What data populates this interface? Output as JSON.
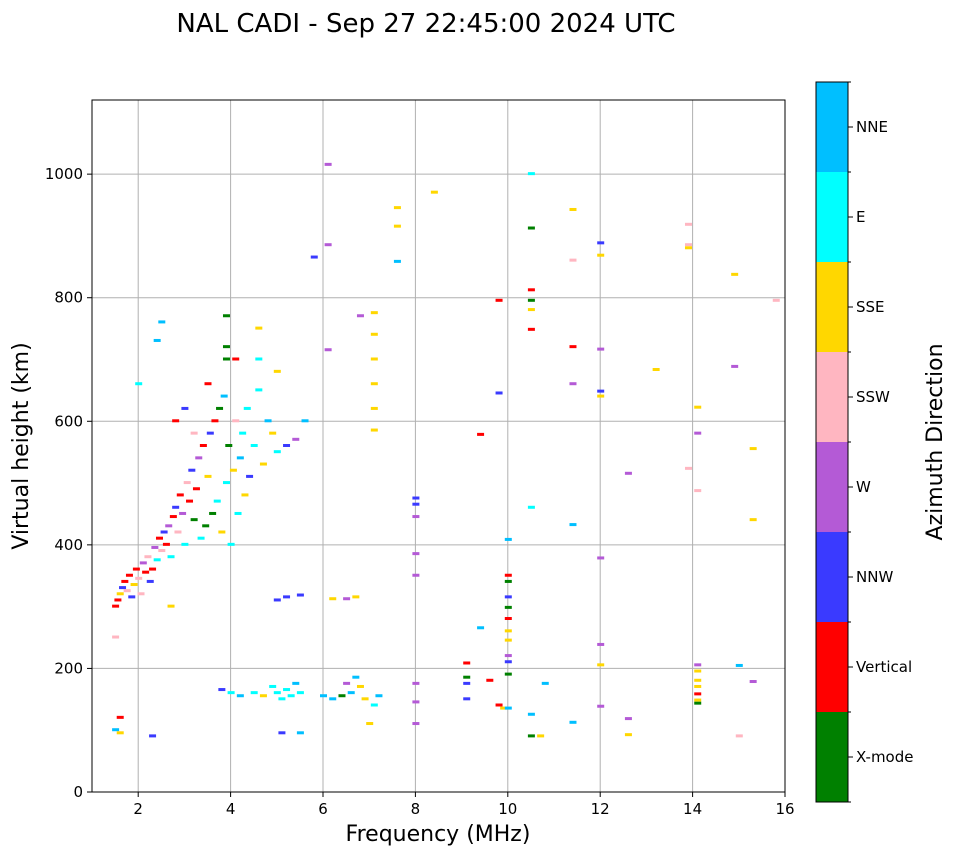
{
  "chart_data": {
    "type": "scatter",
    "title": "NAL CADI - Sep 27 22:45:00 2024 UTC",
    "xlabel": "Frequency (MHz)",
    "ylabel": "Virtual height (km)",
    "xlim": [
      1,
      16
    ],
    "ylim": [
      0,
      1120
    ],
    "xticks": [
      2,
      4,
      6,
      8,
      10,
      12,
      14,
      16
    ],
    "yticks": [
      0,
      200,
      400,
      600,
      800,
      1000
    ],
    "grid": true,
    "colorbar": {
      "title": "Azimuth Direction",
      "categories": [
        {
          "name": "X-mode",
          "color": "#008000"
        },
        {
          "name": "Vertical",
          "color": "#ff0000"
        },
        {
          "name": "NNW",
          "color": "#3a3aff"
        },
        {
          "name": "W",
          "color": "#b45ad6"
        },
        {
          "name": "SSW",
          "color": "#ffb6c1"
        },
        {
          "name": "SSE",
          "color": "#ffd700"
        },
        {
          "name": "E",
          "color": "#00ffff"
        },
        {
          "name": "NNE",
          "color": "#00bfff"
        }
      ]
    },
    "points": [
      {
        "f": 1.5,
        "h": 300,
        "c": "Vertical"
      },
      {
        "f": 1.55,
        "h": 310,
        "c": "Vertical"
      },
      {
        "f": 1.6,
        "h": 320,
        "c": "SSE"
      },
      {
        "f": 1.65,
        "h": 330,
        "c": "NNW"
      },
      {
        "f": 1.7,
        "h": 340,
        "c": "Vertical"
      },
      {
        "f": 1.75,
        "h": 325,
        "c": "SSW"
      },
      {
        "f": 1.8,
        "h": 350,
        "c": "Vertical"
      },
      {
        "f": 1.85,
        "h": 315,
        "c": "NNW"
      },
      {
        "f": 1.9,
        "h": 335,
        "c": "SSE"
      },
      {
        "f": 1.95,
        "h": 360,
        "c": "Vertical"
      },
      {
        "f": 2.0,
        "h": 345,
        "c": "SSW"
      },
      {
        "f": 2.05,
        "h": 320,
        "c": "SSW"
      },
      {
        "f": 2.1,
        "h": 370,
        "c": "W"
      },
      {
        "f": 2.15,
        "h": 355,
        "c": "Vertical"
      },
      {
        "f": 2.2,
        "h": 380,
        "c": "SSW"
      },
      {
        "f": 2.25,
        "h": 340,
        "c": "NNW"
      },
      {
        "f": 2.3,
        "h": 360,
        "c": "Vertical"
      },
      {
        "f": 2.35,
        "h": 395,
        "c": "W"
      },
      {
        "f": 2.4,
        "h": 375,
        "c": "E"
      },
      {
        "f": 2.45,
        "h": 410,
        "c": "Vertical"
      },
      {
        "f": 2.5,
        "h": 390,
        "c": "SSW"
      },
      {
        "f": 2.55,
        "h": 420,
        "c": "NNW"
      },
      {
        "f": 2.6,
        "h": 400,
        "c": "Vertical"
      },
      {
        "f": 2.65,
        "h": 430,
        "c": "W"
      },
      {
        "f": 2.7,
        "h": 380,
        "c": "E"
      },
      {
        "f": 2.75,
        "h": 445,
        "c": "Vertical"
      },
      {
        "f": 2.8,
        "h": 460,
        "c": "NNW"
      },
      {
        "f": 2.85,
        "h": 420,
        "c": "SSW"
      },
      {
        "f": 2.9,
        "h": 480,
        "c": "Vertical"
      },
      {
        "f": 2.95,
        "h": 450,
        "c": "W"
      },
      {
        "f": 3.0,
        "h": 400,
        "c": "E"
      },
      {
        "f": 3.05,
        "h": 500,
        "c": "SSW"
      },
      {
        "f": 3.1,
        "h": 470,
        "c": "Vertical"
      },
      {
        "f": 3.15,
        "h": 520,
        "c": "NNW"
      },
      {
        "f": 3.2,
        "h": 440,
        "c": "X-mode"
      },
      {
        "f": 3.25,
        "h": 490,
        "c": "Vertical"
      },
      {
        "f": 3.3,
        "h": 540,
        "c": "W"
      },
      {
        "f": 3.35,
        "h": 410,
        "c": "E"
      },
      {
        "f": 3.4,
        "h": 560,
        "c": "Vertical"
      },
      {
        "f": 3.45,
        "h": 430,
        "c": "X-mode"
      },
      {
        "f": 3.5,
        "h": 510,
        "c": "SSE"
      },
      {
        "f": 3.55,
        "h": 580,
        "c": "NNW"
      },
      {
        "f": 3.6,
        "h": 450,
        "c": "X-mode"
      },
      {
        "f": 3.65,
        "h": 600,
        "c": "Vertical"
      },
      {
        "f": 3.7,
        "h": 470,
        "c": "E"
      },
      {
        "f": 3.75,
        "h": 620,
        "c": "X-mode"
      },
      {
        "f": 3.8,
        "h": 420,
        "c": "SSE"
      },
      {
        "f": 3.85,
        "h": 640,
        "c": "NNE"
      },
      {
        "f": 3.9,
        "h": 500,
        "c": "E"
      },
      {
        "f": 3.95,
        "h": 560,
        "c": "X-mode"
      },
      {
        "f": 4.0,
        "h": 400,
        "c": "E"
      },
      {
        "f": 4.05,
        "h": 520,
        "c": "SSE"
      },
      {
        "f": 4.1,
        "h": 600,
        "c": "SSW"
      },
      {
        "f": 4.15,
        "h": 450,
        "c": "E"
      },
      {
        "f": 4.2,
        "h": 540,
        "c": "NNE"
      },
      {
        "f": 4.25,
        "h": 580,
        "c": "E"
      },
      {
        "f": 4.3,
        "h": 480,
        "c": "SSE"
      },
      {
        "f": 4.35,
        "h": 620,
        "c": "E"
      },
      {
        "f": 4.4,
        "h": 510,
        "c": "NNW"
      },
      {
        "f": 4.5,
        "h": 560,
        "c": "E"
      },
      {
        "f": 4.6,
        "h": 650,
        "c": "E"
      },
      {
        "f": 4.7,
        "h": 530,
        "c": "SSE"
      },
      {
        "f": 4.8,
        "h": 600,
        "c": "NNE"
      },
      {
        "f": 4.9,
        "h": 580,
        "c": "SSE"
      },
      {
        "f": 5.0,
        "h": 550,
        "c": "E"
      },
      {
        "f": 5.2,
        "h": 560,
        "c": "NNW"
      },
      {
        "f": 5.4,
        "h": 570,
        "c": "W"
      },
      {
        "f": 5.6,
        "h": 600,
        "c": "NNE"
      },
      {
        "f": 3.2,
        "h": 580,
        "c": "SSW"
      },
      {
        "f": 3.0,
        "h": 620,
        "c": "NNW"
      },
      {
        "f": 2.8,
        "h": 600,
        "c": "Vertical"
      },
      {
        "f": 3.5,
        "h": 660,
        "c": "Vertical"
      },
      {
        "f": 3.9,
        "h": 700,
        "c": "X-mode"
      },
      {
        "f": 3.9,
        "h": 720,
        "c": "X-mode"
      },
      {
        "f": 4.1,
        "h": 700,
        "c": "Vertical"
      },
      {
        "f": 4.6,
        "h": 700,
        "c": "E"
      },
      {
        "f": 4.6,
        "h": 750,
        "c": "SSE"
      },
      {
        "f": 2.4,
        "h": 730,
        "c": "NNE"
      },
      {
        "f": 2.5,
        "h": 760,
        "c": "NNE"
      },
      {
        "f": 2.0,
        "h": 660,
        "c": "E"
      },
      {
        "f": 3.9,
        "h": 770,
        "c": "X-mode"
      },
      {
        "f": 5.0,
        "h": 680,
        "c": "SSE"
      },
      {
        "f": 2.7,
        "h": 300,
        "c": "SSE"
      },
      {
        "f": 1.5,
        "h": 250,
        "c": "SSW"
      },
      {
        "f": 1.5,
        "h": 100,
        "c": "NNE"
      },
      {
        "f": 1.6,
        "h": 95,
        "c": "SSE"
      },
      {
        "f": 1.6,
        "h": 120,
        "c": "Vertical"
      },
      {
        "f": 2.3,
        "h": 90,
        "c": "NNW"
      },
      {
        "f": 3.8,
        "h": 165,
        "c": "NNW"
      },
      {
        "f": 4.0,
        "h": 160,
        "c": "E"
      },
      {
        "f": 4.2,
        "h": 155,
        "c": "NNE"
      },
      {
        "f": 4.5,
        "h": 160,
        "c": "E"
      },
      {
        "f": 4.7,
        "h": 155,
        "c": "SSE"
      },
      {
        "f": 4.9,
        "h": 170,
        "c": "E"
      },
      {
        "f": 5.0,
        "h": 160,
        "c": "E"
      },
      {
        "f": 5.1,
        "h": 150,
        "c": "E"
      },
      {
        "f": 5.2,
        "h": 165,
        "c": "E"
      },
      {
        "f": 5.3,
        "h": 155,
        "c": "E"
      },
      {
        "f": 5.4,
        "h": 175,
        "c": "NNE"
      },
      {
        "f": 5.5,
        "h": 160,
        "c": "E"
      },
      {
        "f": 5.1,
        "h": 95,
        "c": "NNW"
      },
      {
        "f": 5.5,
        "h": 95,
        "c": "NNE"
      },
      {
        "f": 5.2,
        "h": 315,
        "c": "NNW"
      },
      {
        "f": 5.5,
        "h": 318,
        "c": "NNW"
      },
      {
        "f": 5.0,
        "h": 310,
        "c": "NNW"
      },
      {
        "f": 6.0,
        "h": 155,
        "c": "NNE"
      },
      {
        "f": 6.2,
        "h": 150,
        "c": "NNE"
      },
      {
        "f": 6.4,
        "h": 155,
        "c": "X-mode"
      },
      {
        "f": 6.6,
        "h": 160,
        "c": "NNE"
      },
      {
        "f": 6.8,
        "h": 170,
        "c": "SSE"
      },
      {
        "f": 6.5,
        "h": 175,
        "c": "W"
      },
      {
        "f": 6.7,
        "h": 185,
        "c": "NNE"
      },
      {
        "f": 6.9,
        "h": 150,
        "c": "SSE"
      },
      {
        "f": 7.1,
        "h": 140,
        "c": "E"
      },
      {
        "f": 7.2,
        "h": 155,
        "c": "NNE"
      },
      {
        "f": 7.0,
        "h": 110,
        "c": "SSE"
      },
      {
        "f": 6.2,
        "h": 312,
        "c": "SSE"
      },
      {
        "f": 6.5,
        "h": 312,
        "c": "W"
      },
      {
        "f": 6.7,
        "h": 315,
        "c": "SSE"
      },
      {
        "f": 6.1,
        "h": 1015,
        "c": "W"
      },
      {
        "f": 6.1,
        "h": 885,
        "c": "W"
      },
      {
        "f": 5.8,
        "h": 865,
        "c": "NNW"
      },
      {
        "f": 6.1,
        "h": 715,
        "c": "W"
      },
      {
        "f": 6.8,
        "h": 770,
        "c": "W"
      },
      {
        "f": 7.1,
        "h": 775,
        "c": "SSE"
      },
      {
        "f": 7.1,
        "h": 740,
        "c": "SSE"
      },
      {
        "f": 7.1,
        "h": 700,
        "c": "SSE"
      },
      {
        "f": 7.1,
        "h": 660,
        "c": "SSE"
      },
      {
        "f": 7.1,
        "h": 620,
        "c": "SSE"
      },
      {
        "f": 7.1,
        "h": 585,
        "c": "SSE"
      },
      {
        "f": 7.6,
        "h": 945,
        "c": "SSE"
      },
      {
        "f": 7.6,
        "h": 915,
        "c": "SSE"
      },
      {
        "f": 7.6,
        "h": 858,
        "c": "NNE"
      },
      {
        "f": 8.4,
        "h": 970,
        "c": "SSE"
      },
      {
        "f": 8.0,
        "h": 475,
        "c": "NNW"
      },
      {
        "f": 8.0,
        "h": 465,
        "c": "NNW"
      },
      {
        "f": 8.0,
        "h": 445,
        "c": "W"
      },
      {
        "f": 8.0,
        "h": 385,
        "c": "W"
      },
      {
        "f": 8.0,
        "h": 350,
        "c": "W"
      },
      {
        "f": 8.0,
        "h": 175,
        "c": "W"
      },
      {
        "f": 8.0,
        "h": 145,
        "c": "W"
      },
      {
        "f": 8.0,
        "h": 110,
        "c": "W"
      },
      {
        "f": 9.1,
        "h": 208,
        "c": "Vertical"
      },
      {
        "f": 9.1,
        "h": 185,
        "c": "X-mode"
      },
      {
        "f": 9.1,
        "h": 175,
        "c": "NNW"
      },
      {
        "f": 9.1,
        "h": 150,
        "c": "NNW"
      },
      {
        "f": 9.4,
        "h": 578,
        "c": "Vertical"
      },
      {
        "f": 9.4,
        "h": 265,
        "c": "NNE"
      },
      {
        "f": 9.6,
        "h": 180,
        "c": "Vertical"
      },
      {
        "f": 9.8,
        "h": 795,
        "c": "Vertical"
      },
      {
        "f": 9.8,
        "h": 645,
        "c": "NNW"
      },
      {
        "f": 9.8,
        "h": 140,
        "c": "Vertical"
      },
      {
        "f": 9.9,
        "h": 135,
        "c": "SSE"
      },
      {
        "f": 10.0,
        "h": 408,
        "c": "NNE"
      },
      {
        "f": 10.0,
        "h": 350,
        "c": "Vertical"
      },
      {
        "f": 10.0,
        "h": 340,
        "c": "X-mode"
      },
      {
        "f": 10.0,
        "h": 315,
        "c": "NNW"
      },
      {
        "f": 10.0,
        "h": 298,
        "c": "X-mode"
      },
      {
        "f": 10.0,
        "h": 280,
        "c": "Vertical"
      },
      {
        "f": 10.0,
        "h": 260,
        "c": "SSE"
      },
      {
        "f": 10.0,
        "h": 245,
        "c": "SSE"
      },
      {
        "f": 10.0,
        "h": 220,
        "c": "W"
      },
      {
        "f": 10.0,
        "h": 210,
        "c": "NNW"
      },
      {
        "f": 10.0,
        "h": 190,
        "c": "X-mode"
      },
      {
        "f": 10.0,
        "h": 135,
        "c": "NNE"
      },
      {
        "f": 10.5,
        "h": 1000,
        "c": "E"
      },
      {
        "f": 10.5,
        "h": 912,
        "c": "X-mode"
      },
      {
        "f": 10.5,
        "h": 812,
        "c": "Vertical"
      },
      {
        "f": 10.5,
        "h": 795,
        "c": "X-mode"
      },
      {
        "f": 10.5,
        "h": 780,
        "c": "SSE"
      },
      {
        "f": 10.5,
        "h": 748,
        "c": "Vertical"
      },
      {
        "f": 10.5,
        "h": 460,
        "c": "E"
      },
      {
        "f": 10.5,
        "h": 125,
        "c": "NNE"
      },
      {
        "f": 10.5,
        "h": 90,
        "c": "X-mode"
      },
      {
        "f": 10.7,
        "h": 90,
        "c": "SSE"
      },
      {
        "f": 10.8,
        "h": 175,
        "c": "NNE"
      },
      {
        "f": 11.4,
        "h": 942,
        "c": "SSE"
      },
      {
        "f": 11.4,
        "h": 860,
        "c": "SSW"
      },
      {
        "f": 11.4,
        "h": 720,
        "c": "Vertical"
      },
      {
        "f": 11.4,
        "h": 660,
        "c": "W"
      },
      {
        "f": 11.4,
        "h": 432,
        "c": "NNE"
      },
      {
        "f": 11.4,
        "h": 112,
        "c": "NNE"
      },
      {
        "f": 12.0,
        "h": 888,
        "c": "NNW"
      },
      {
        "f": 12.0,
        "h": 868,
        "c": "SSE"
      },
      {
        "f": 12.0,
        "h": 716,
        "c": "W"
      },
      {
        "f": 12.0,
        "h": 648,
        "c": "NNW"
      },
      {
        "f": 12.0,
        "h": 640,
        "c": "SSE"
      },
      {
        "f": 12.0,
        "h": 378,
        "c": "W"
      },
      {
        "f": 12.0,
        "h": 238,
        "c": "W"
      },
      {
        "f": 12.0,
        "h": 205,
        "c": "SSE"
      },
      {
        "f": 12.0,
        "h": 138,
        "c": "W"
      },
      {
        "f": 12.6,
        "h": 515,
        "c": "W"
      },
      {
        "f": 12.6,
        "h": 118,
        "c": "W"
      },
      {
        "f": 12.6,
        "h": 92,
        "c": "SSE"
      },
      {
        "f": 13.2,
        "h": 683,
        "c": "SSE"
      },
      {
        "f": 13.9,
        "h": 918,
        "c": "SSW"
      },
      {
        "f": 13.9,
        "h": 885,
        "c": "SSW"
      },
      {
        "f": 13.9,
        "h": 880,
        "c": "SSE"
      },
      {
        "f": 13.9,
        "h": 523,
        "c": "SSW"
      },
      {
        "f": 14.1,
        "h": 622,
        "c": "SSE"
      },
      {
        "f": 14.1,
        "h": 580,
        "c": "W"
      },
      {
        "f": 14.1,
        "h": 487,
        "c": "SSW"
      },
      {
        "f": 14.1,
        "h": 205,
        "c": "W"
      },
      {
        "f": 14.1,
        "h": 195,
        "c": "SSE"
      },
      {
        "f": 14.1,
        "h": 180,
        "c": "SSE"
      },
      {
        "f": 14.1,
        "h": 170,
        "c": "SSE"
      },
      {
        "f": 14.1,
        "h": 158,
        "c": "Vertical"
      },
      {
        "f": 14.1,
        "h": 143,
        "c": "X-mode"
      },
      {
        "f": 14.1,
        "h": 148,
        "c": "SSE"
      },
      {
        "f": 14.9,
        "h": 837,
        "c": "SSE"
      },
      {
        "f": 14.9,
        "h": 688,
        "c": "W"
      },
      {
        "f": 15.3,
        "h": 555,
        "c": "SSE"
      },
      {
        "f": 15.3,
        "h": 440,
        "c": "SSE"
      },
      {
        "f": 15.0,
        "h": 204,
        "c": "NNE"
      },
      {
        "f": 15.3,
        "h": 178,
        "c": "W"
      },
      {
        "f": 15.0,
        "h": 90,
        "c": "SSW"
      },
      {
        "f": 15.8,
        "h": 795,
        "c": "SSW"
      }
    ]
  }
}
